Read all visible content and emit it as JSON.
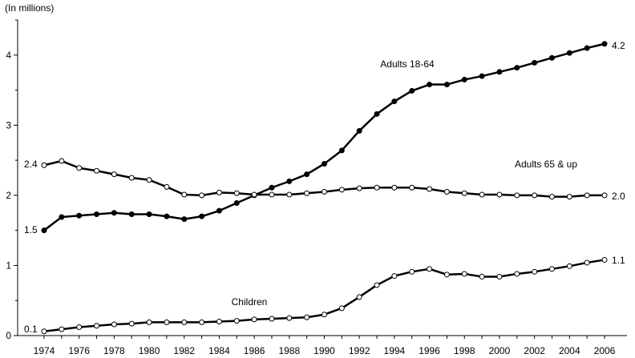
{
  "chart_data": {
    "type": "line",
    "title": "",
    "ylabel": "(In millions)",
    "xlabel": "",
    "xlim": [
      1974,
      2006
    ],
    "ylim": [
      0,
      4.5
    ],
    "yticks": [
      0,
      1,
      2,
      3,
      4
    ],
    "xticks": [
      1974,
      1976,
      1978,
      1980,
      1982,
      1984,
      1986,
      1988,
      1990,
      1992,
      1994,
      1996,
      1998,
      2000,
      2002,
      2004,
      2006
    ],
    "grid": false,
    "x": [
      1974,
      1975,
      1976,
      1977,
      1978,
      1979,
      1980,
      1981,
      1982,
      1983,
      1984,
      1985,
      1986,
      1987,
      1988,
      1989,
      1990,
      1991,
      1992,
      1993,
      1994,
      1995,
      1996,
      1997,
      1998,
      1999,
      2000,
      2001,
      2002,
      2003,
      2004,
      2005,
      2006
    ],
    "series": [
      {
        "name": "Adults 18-64",
        "marker": "filled",
        "values": [
          1.5,
          1.69,
          1.71,
          1.73,
          1.75,
          1.73,
          1.73,
          1.7,
          1.66,
          1.7,
          1.78,
          1.89,
          2.0,
          2.11,
          2.2,
          2.3,
          2.45,
          2.64,
          2.92,
          3.16,
          3.34,
          3.49,
          3.58,
          3.58,
          3.65,
          3.7,
          3.76,
          3.82,
          3.89,
          3.96,
          4.03,
          4.1,
          4.16
        ],
        "label": "Adults 18-64",
        "start_label": "1.5",
        "end_label": "4.2"
      },
      {
        "name": "Adults 65 & up",
        "marker": "open",
        "values": [
          2.43,
          2.49,
          2.39,
          2.35,
          2.3,
          2.25,
          2.22,
          2.12,
          2.01,
          2.0,
          2.04,
          2.03,
          2.01,
          2.01,
          2.01,
          2.03,
          2.05,
          2.08,
          2.1,
          2.11,
          2.11,
          2.11,
          2.09,
          2.05,
          2.03,
          2.01,
          2.01,
          2.0,
          2.0,
          1.98,
          1.98,
          2.0,
          2.0
        ],
        "label": "Adults 65 & up",
        "start_label": "2.4",
        "end_label": "2.0"
      },
      {
        "name": "Children",
        "marker": "open",
        "values": [
          0.06,
          0.09,
          0.12,
          0.14,
          0.16,
          0.17,
          0.19,
          0.19,
          0.19,
          0.19,
          0.2,
          0.21,
          0.23,
          0.24,
          0.25,
          0.26,
          0.3,
          0.39,
          0.55,
          0.72,
          0.85,
          0.91,
          0.95,
          0.87,
          0.88,
          0.84,
          0.84,
          0.88,
          0.91,
          0.95,
          0.99,
          1.04,
          1.08
        ],
        "label": "Children",
        "start_label": "0.1",
        "end_label": "1.1"
      }
    ]
  }
}
